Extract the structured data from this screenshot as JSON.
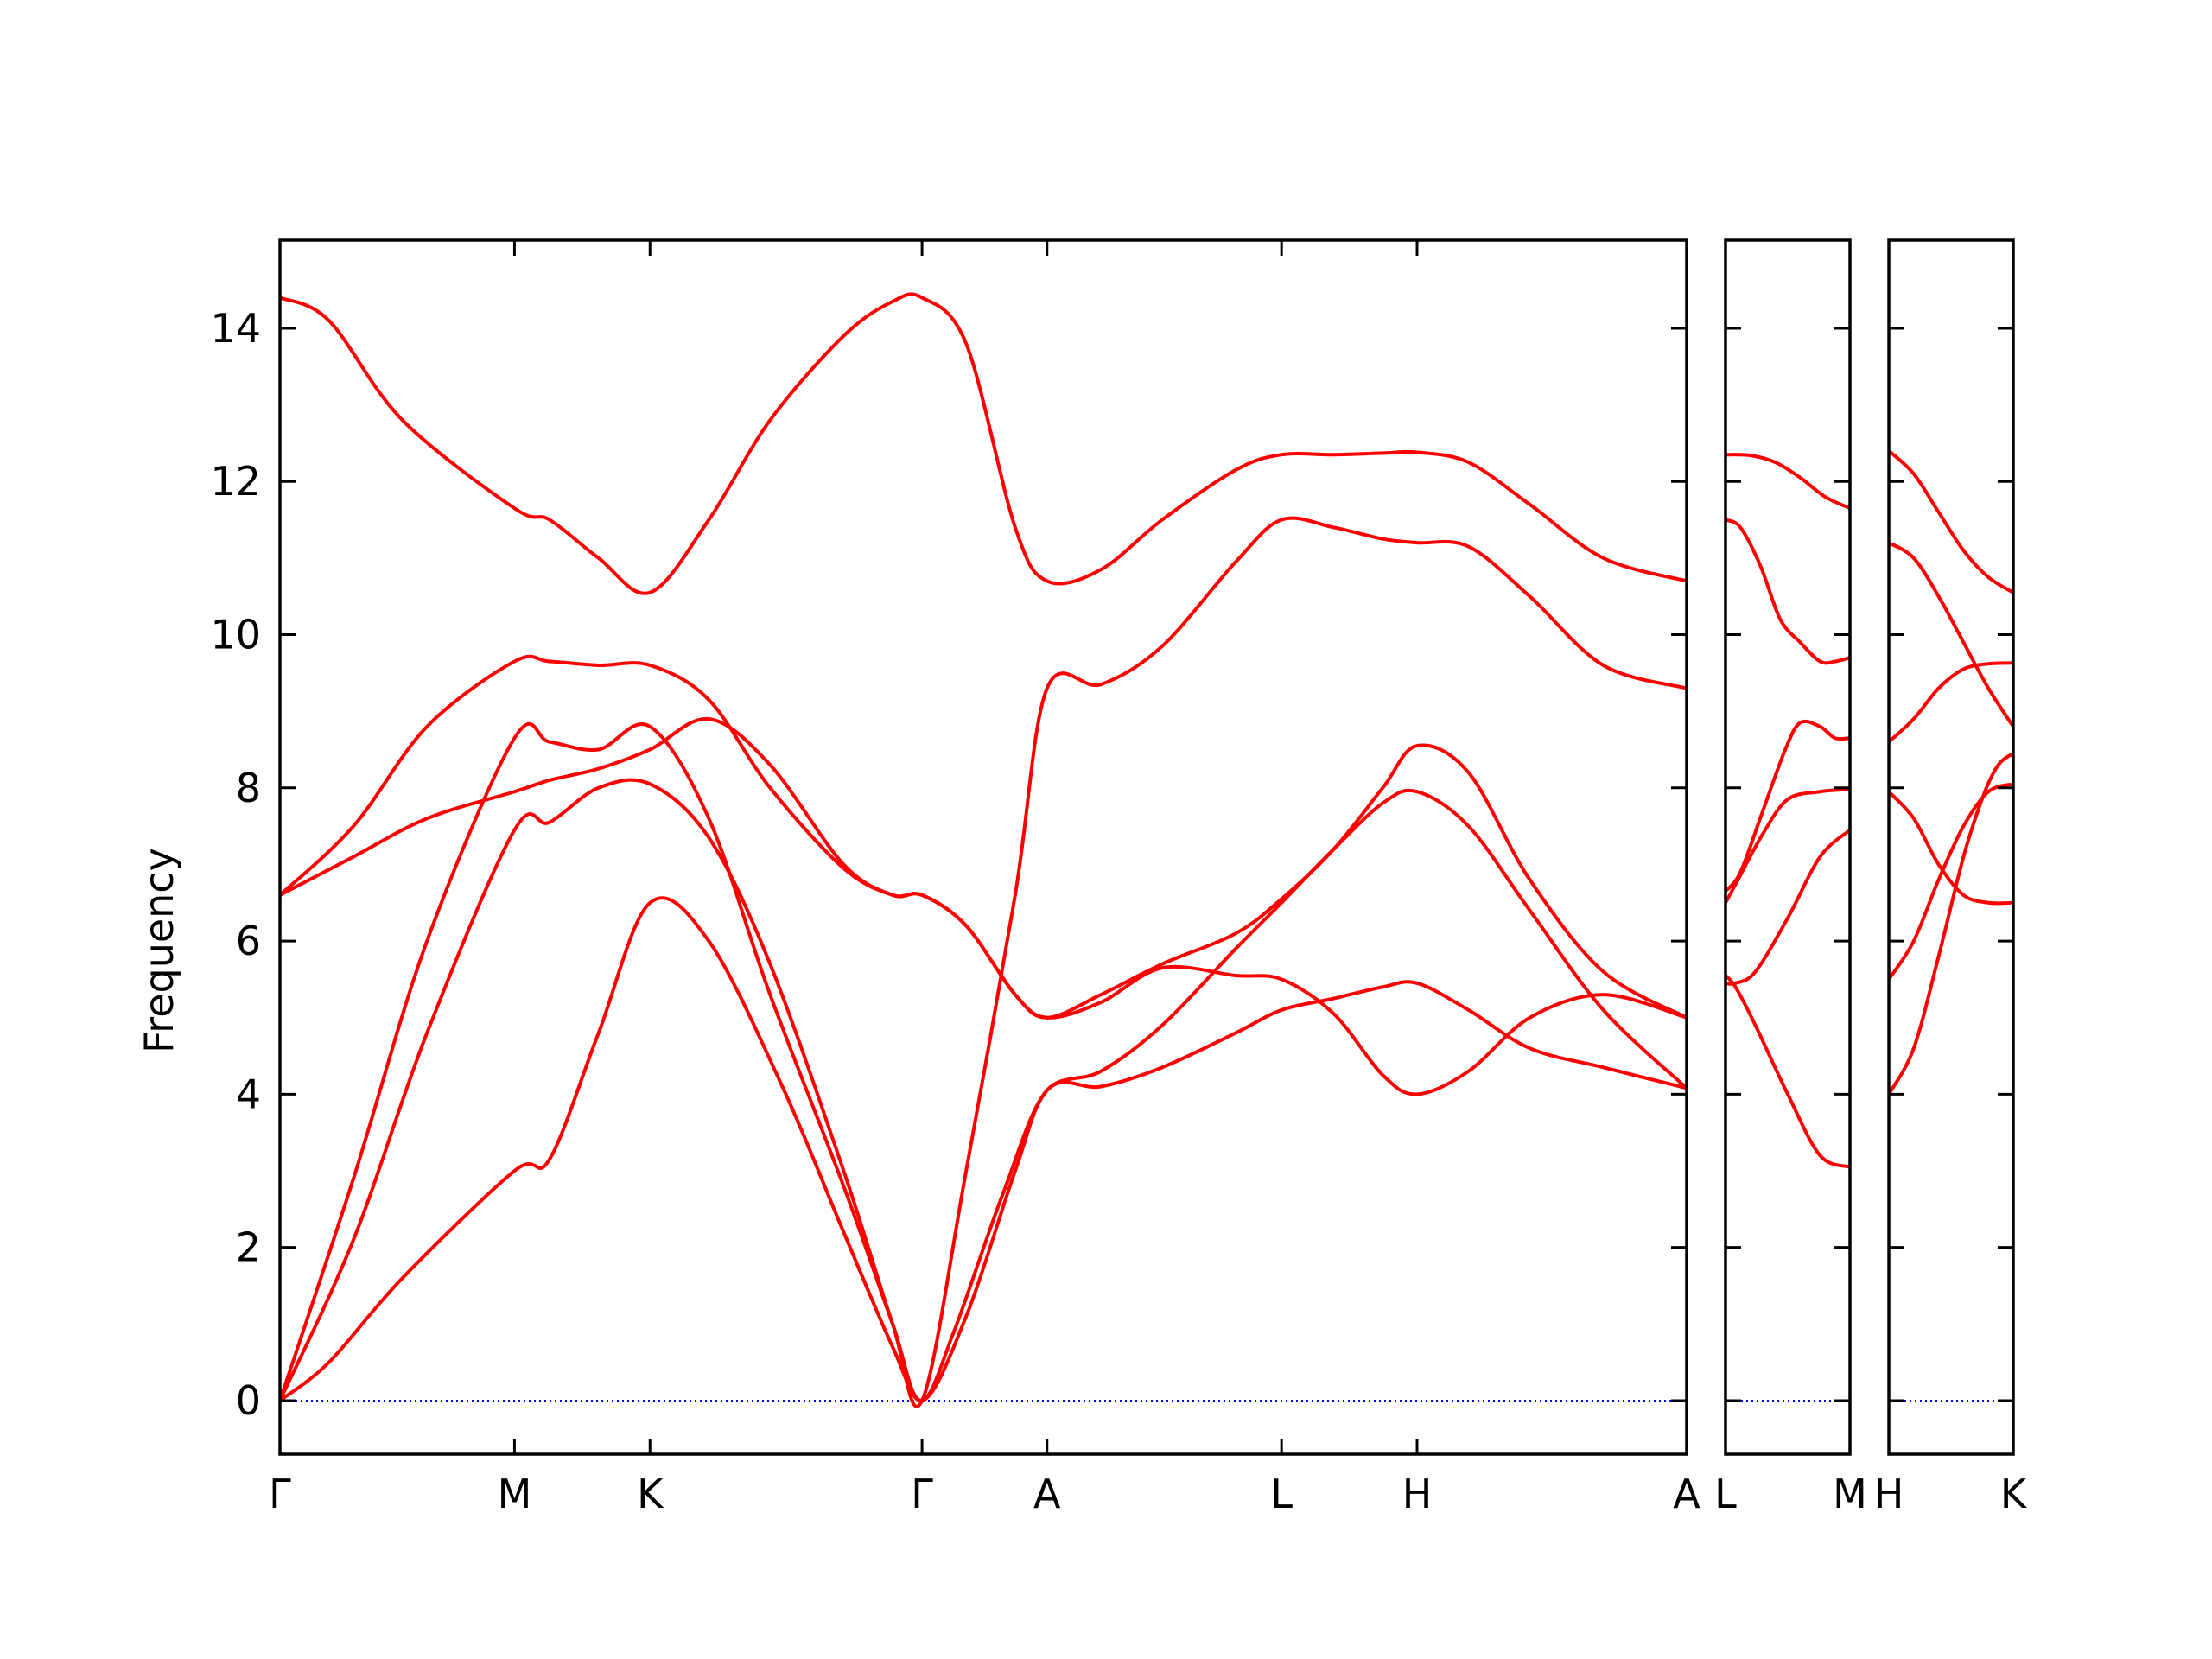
{
  "chart_data": {
    "type": "line",
    "ylabel": "Frequency",
    "ylim": [
      -0.7,
      15.15
    ],
    "yticks": [
      0,
      2,
      4,
      6,
      8,
      10,
      12,
      14
    ],
    "grid": false,
    "colors": {
      "bands": "#ff0000",
      "zero_line": "#0000ff",
      "axes": "#000000"
    },
    "panels": [
      {
        "name": "Γ-M-K-Γ-A-L-H-A",
        "xlim": [
          0,
          5.74
        ],
        "xticks": [
          {
            "pos": 0.0,
            "label": "Γ"
          },
          {
            "pos": 0.957,
            "label": "M"
          },
          {
            "pos": 1.51,
            "label": "K"
          },
          {
            "pos": 2.62,
            "label": "Γ"
          },
          {
            "pos": 3.13,
            "label": "A"
          },
          {
            "pos": 4.087,
            "label": "L"
          },
          {
            "pos": 4.64,
            "label": "H"
          },
          {
            "pos": 5.74,
            "label": "A"
          }
        ],
        "bands": [
          {
            "x": [
              0,
              0.2,
              0.5,
              0.957,
              1.1,
              1.3,
              1.51,
              1.75,
              2.05,
              2.3,
              2.5,
              2.62,
              2.75,
              2.95,
              3.13,
              3.35,
              3.6,
              3.9,
              4.087,
              4.3,
              4.5,
              4.64,
              4.85,
              5.1,
              5.4,
              5.74
            ],
            "y": [
              0,
              0.5,
              1.6,
              3.0,
              3.15,
              4.8,
              6.5,
              6.0,
              4.1,
              2.2,
              0.7,
              0,
              0.9,
              2.7,
              4.05,
              4.1,
              4.35,
              4.8,
              5.1,
              5.25,
              5.4,
              5.45,
              5.1,
              4.6,
              4.35,
              4.08
            ]
          },
          {
            "x": [
              0,
              0.3,
              0.6,
              0.957,
              1.1,
              1.3,
              1.51,
              1.75,
              2.0,
              2.3,
              2.5,
              2.62,
              2.8,
              3.0,
              3.13,
              3.35,
              3.6,
              3.9,
              4.087,
              4.3,
              4.5,
              4.64,
              4.85,
              5.1,
              5.4,
              5.74
            ],
            "y": [
              0,
              2.1,
              4.8,
              7.45,
              7.55,
              8.0,
              8.05,
              7.35,
              5.7,
              3.0,
              1.0,
              0,
              3.0,
              6.6,
              9.3,
              9.35,
              9.85,
              10.95,
              11.5,
              11.4,
              11.25,
              11.2,
              11.15,
              10.5,
              9.6,
              9.3
            ]
          },
          {
            "x": [
              0,
              0.3,
              0.6,
              0.957,
              1.1,
              1.3,
              1.51,
              1.75,
              2.0,
              2.3,
              2.5,
              2.62,
              2.8,
              3.0,
              3.13,
              3.35,
              3.6,
              3.9,
              4.087,
              4.3,
              4.5,
              4.64,
              4.85,
              5.1,
              5.4,
              5.74
            ],
            "y": [
              0,
              2.9,
              6.0,
              8.65,
              8.6,
              8.5,
              8.8,
              7.6,
              5.3,
              2.8,
              1.0,
              0,
              1.1,
              3.0,
              4.05,
              4.3,
              4.9,
              5.9,
              6.5,
              7.2,
              7.8,
              7.95,
              7.5,
              6.4,
              5.1,
              4.08
            ]
          },
          {
            "x": [
              0,
              0.3,
              0.6,
              0.957,
              1.1,
              1.3,
              1.51,
              1.75,
              2.0,
              2.3,
              2.5,
              2.62,
              2.8,
              3.0,
              3.13,
              3.35,
              3.6,
              3.9,
              4.087,
              4.3,
              4.5,
              4.64,
              4.85,
              5.1,
              5.4,
              5.74
            ],
            "y": [
              6.6,
              7.1,
              7.6,
              7.95,
              8.1,
              8.25,
              8.5,
              8.9,
              8.3,
              7.0,
              6.6,
              6.6,
              6.2,
              5.3,
              5.0,
              5.3,
              5.7,
              6.1,
              6.55,
              7.2,
              8.0,
              8.55,
              8.2,
              6.8,
              5.6,
              5.0
            ]
          },
          {
            "x": [
              0,
              0.3,
              0.6,
              0.957,
              1.1,
              1.3,
              1.51,
              1.75,
              2.0,
              2.3,
              2.5,
              2.62,
              2.8,
              3.0,
              3.13,
              3.35,
              3.6,
              3.9,
              4.087,
              4.3,
              4.5,
              4.64,
              4.85,
              5.1,
              5.4,
              5.74
            ],
            "y": [
              6.6,
              7.5,
              8.8,
              9.65,
              9.65,
              9.6,
              9.6,
              9.15,
              8.0,
              6.95,
              6.6,
              6.6,
              6.2,
              5.3,
              5.0,
              5.2,
              5.65,
              5.55,
              5.5,
              5.05,
              4.25,
              4.0,
              4.3,
              5.0,
              5.3,
              5.0
            ]
          },
          {
            "x": [
              0,
              0.2,
              0.5,
              0.957,
              1.1,
              1.3,
              1.51,
              1.75,
              2.0,
              2.3,
              2.5,
              2.62,
              2.8,
              3.0,
              3.13,
              3.35,
              3.6,
              3.9,
              4.087,
              4.3,
              4.5,
              4.64,
              4.85,
              5.1,
              5.4,
              5.74
            ],
            "y": [
              14.4,
              14.1,
              12.8,
              11.65,
              11.5,
              11.0,
              10.55,
              11.5,
              12.8,
              13.9,
              14.35,
              14.4,
              13.8,
              11.4,
              10.7,
              10.85,
              11.5,
              12.15,
              12.35,
              12.35,
              12.37,
              12.38,
              12.25,
              11.7,
              11.0,
              10.7
            ]
          }
        ]
      },
      {
        "name": "L-M",
        "xlim": [
          0,
          0.5
        ],
        "xticks": [
          {
            "pos": 0.0,
            "label": "L"
          },
          {
            "pos": 0.5,
            "label": "M"
          }
        ],
        "bands": [
          {
            "x": [
              0,
              0.04,
              0.12,
              0.25,
              0.38,
              0.5
            ],
            "y": [
              5.55,
              5.4,
              4.9,
              4.0,
              3.2,
              3.05
            ]
          },
          {
            "x": [
              0,
              0.04,
              0.12,
              0.25,
              0.38,
              0.5
            ],
            "y": [
              5.45,
              5.45,
              5.6,
              6.3,
              7.1,
              7.45
            ]
          },
          {
            "x": [
              0,
              0.05,
              0.15,
              0.25,
              0.38,
              0.5
            ],
            "y": [
              6.5,
              6.8,
              7.4,
              7.85,
              7.95,
              7.98
            ]
          },
          {
            "x": [
              0,
              0.06,
              0.15,
              0.24,
              0.3,
              0.38,
              0.44,
              0.5
            ],
            "y": [
              6.65,
              6.9,
              7.7,
              8.5,
              8.85,
              8.8,
              8.65,
              8.65
            ]
          },
          {
            "x": [
              0,
              0.06,
              0.14,
              0.22,
              0.3,
              0.38,
              0.44,
              0.5
            ],
            "y": [
              11.5,
              11.4,
              10.9,
              10.2,
              9.9,
              9.65,
              9.65,
              9.7
            ]
          },
          {
            "x": [
              0,
              0.1,
              0.2,
              0.3,
              0.4,
              0.5
            ],
            "y": [
              12.35,
              12.34,
              12.25,
              12.05,
              11.8,
              11.65
            ]
          }
        ]
      },
      {
        "name": "H-K",
        "xlim": [
          0,
          0.5
        ],
        "xticks": [
          {
            "pos": 0.0,
            "label": "H"
          },
          {
            "pos": 0.5,
            "label": "K"
          }
        ],
        "bands": [
          {
            "x": [
              0,
              0.1,
              0.2,
              0.3,
              0.38,
              0.44,
              0.5
            ],
            "y": [
              4.0,
              4.6,
              5.8,
              7.1,
              7.9,
              8.3,
              8.45
            ]
          },
          {
            "x": [
              0,
              0.1,
              0.2,
              0.3,
              0.4,
              0.5
            ],
            "y": [
              5.5,
              6.0,
              6.8,
              7.5,
              7.95,
              8.05
            ]
          },
          {
            "x": [
              0,
              0.1,
              0.2,
              0.3,
              0.4,
              0.5
            ],
            "y": [
              7.95,
              7.6,
              7.0,
              6.6,
              6.5,
              6.5
            ]
          },
          {
            "x": [
              0,
              0.1,
              0.2,
              0.3,
              0.4,
              0.5
            ],
            "y": [
              8.6,
              8.9,
              9.3,
              9.55,
              9.62,
              9.63
            ]
          },
          {
            "x": [
              0,
              0.1,
              0.2,
              0.3,
              0.4,
              0.5
            ],
            "y": [
              11.2,
              11.0,
              10.5,
              9.9,
              9.3,
              8.8
            ]
          },
          {
            "x": [
              0,
              0.1,
              0.2,
              0.3,
              0.4,
              0.5
            ],
            "y": [
              12.4,
              12.1,
              11.6,
              11.1,
              10.75,
              10.55
            ]
          }
        ]
      }
    ]
  }
}
